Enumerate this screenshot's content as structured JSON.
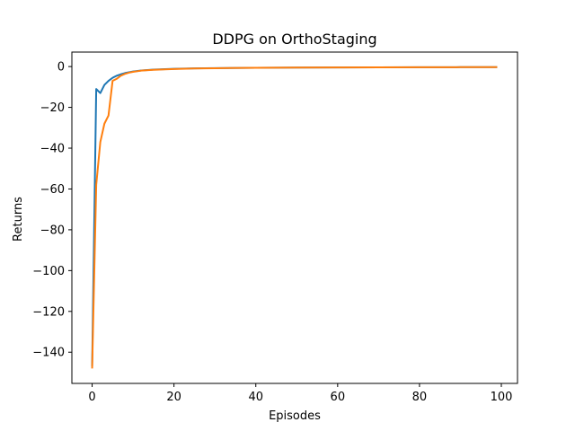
{
  "chart_data": {
    "type": "line",
    "title": "DDPG on OrthoStaging",
    "xlabel": "Episodes",
    "ylabel": "Returns",
    "xlim": [
      -4.95,
      103.95
    ],
    "ylim": [
      -155.3,
      7.1
    ],
    "xticks": [
      0,
      20,
      40,
      60,
      80,
      100
    ],
    "yticks": [
      0,
      -20,
      -40,
      -60,
      -80,
      -100,
      -120,
      -140
    ],
    "grid": false,
    "series": [
      {
        "color": "#1f77b4",
        "x": [
          0,
          1,
          2,
          3,
          4,
          5,
          6,
          7,
          8,
          9,
          10,
          12,
          15,
          20,
          25,
          30,
          40,
          50,
          60,
          70,
          80,
          90,
          99
        ],
        "y": [
          -147,
          -11,
          -13,
          -9,
          -7,
          -5.5,
          -4.5,
          -3.8,
          -3.2,
          -2.8,
          -2.4,
          -1.9,
          -1.5,
          -1.1,
          -0.9,
          -0.75,
          -0.6,
          -0.5,
          -0.42,
          -0.37,
          -0.33,
          -0.3,
          -0.28
        ]
      },
      {
        "color": "#ff7f0e",
        "x": [
          0,
          1,
          2,
          3,
          4,
          5,
          6,
          7,
          8,
          9,
          10,
          12,
          15,
          20,
          25,
          30,
          40,
          50,
          60,
          70,
          80,
          90,
          99
        ],
        "y": [
          -148,
          -58,
          -37,
          -28,
          -24,
          -7,
          -6,
          -4.5,
          -3.6,
          -3,
          -2.6,
          -2,
          -1.6,
          -1.2,
          -0.95,
          -0.8,
          -0.6,
          -0.5,
          -0.42,
          -0.37,
          -0.33,
          -0.3,
          -0.28
        ]
      }
    ]
  }
}
